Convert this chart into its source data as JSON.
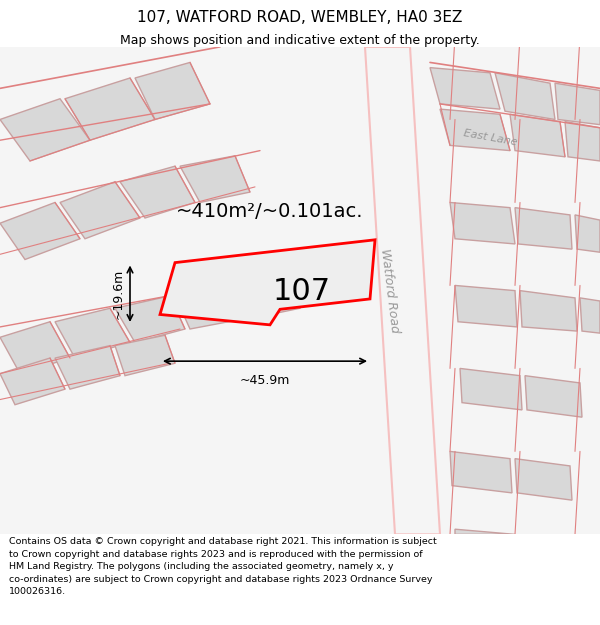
{
  "title": "107, WATFORD ROAD, WEMBLEY, HA0 3EZ",
  "subtitle": "Map shows position and indicative extent of the property.",
  "footer": "Contains OS data © Crown copyright and database right 2021. This information is subject to Crown copyright and database rights 2023 and is reproduced with the permission of HM Land Registry. The polygons (including the associated geometry, namely x, y co-ordinates) are subject to Crown copyright and database rights 2023 Ordnance Survey 100026316.",
  "map_bg": "#f5f5f5",
  "plot_bg": "#ffffff",
  "footer_bg": "#ffffff",
  "road_color_light": "#f5c0c0",
  "road_color_dark": "#e08080",
  "highlight_color": "#ff0000",
  "highlight_fill": "#f0f0f0",
  "block_fill": "#d8d8d8",
  "block_edge": "#c8a0a0",
  "label_107": "107",
  "dim_area": "~410m²/~0.101ac.",
  "dim_width": "~45.9m",
  "dim_height": "~19.6m",
  "watford_road_label": "Watford Road",
  "east_lane_label": "East Lane"
}
